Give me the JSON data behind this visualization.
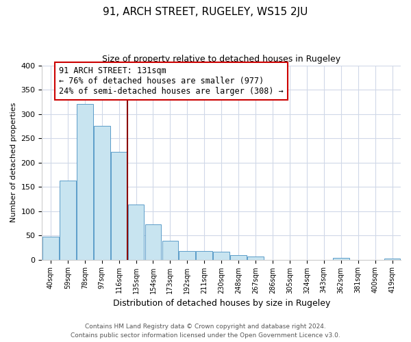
{
  "title": "91, ARCH STREET, RUGELEY, WS15 2JU",
  "subtitle": "Size of property relative to detached houses in Rugeley",
  "xlabel": "Distribution of detached houses by size in Rugeley",
  "ylabel": "Number of detached properties",
  "bin_labels": [
    "40sqm",
    "59sqm",
    "78sqm",
    "97sqm",
    "116sqm",
    "135sqm",
    "154sqm",
    "173sqm",
    "192sqm",
    "211sqm",
    "230sqm",
    "248sqm",
    "267sqm",
    "286sqm",
    "305sqm",
    "324sqm",
    "343sqm",
    "362sqm",
    "381sqm",
    "400sqm",
    "419sqm"
  ],
  "bar_values": [
    47,
    163,
    320,
    275,
    222,
    114,
    72,
    39,
    18,
    18,
    16,
    9,
    6,
    0,
    0,
    0,
    0,
    3,
    0,
    0,
    2
  ],
  "bar_color": "#c8e4f0",
  "bar_edge_color": "#5b9dc9",
  "vline_x_index": 4,
  "vline_color": "#8b0000",
  "ylim": [
    0,
    400
  ],
  "yticks": [
    0,
    50,
    100,
    150,
    200,
    250,
    300,
    350,
    400
  ],
  "annotation_title": "91 ARCH STREET: 131sqm",
  "annotation_line1": "← 76% of detached houses are smaller (977)",
  "annotation_line2": "24% of semi-detached houses are larger (308) →",
  "footer_line1": "Contains HM Land Registry data © Crown copyright and database right 2024.",
  "footer_line2": "Contains public sector information licensed under the Open Government Licence v3.0."
}
